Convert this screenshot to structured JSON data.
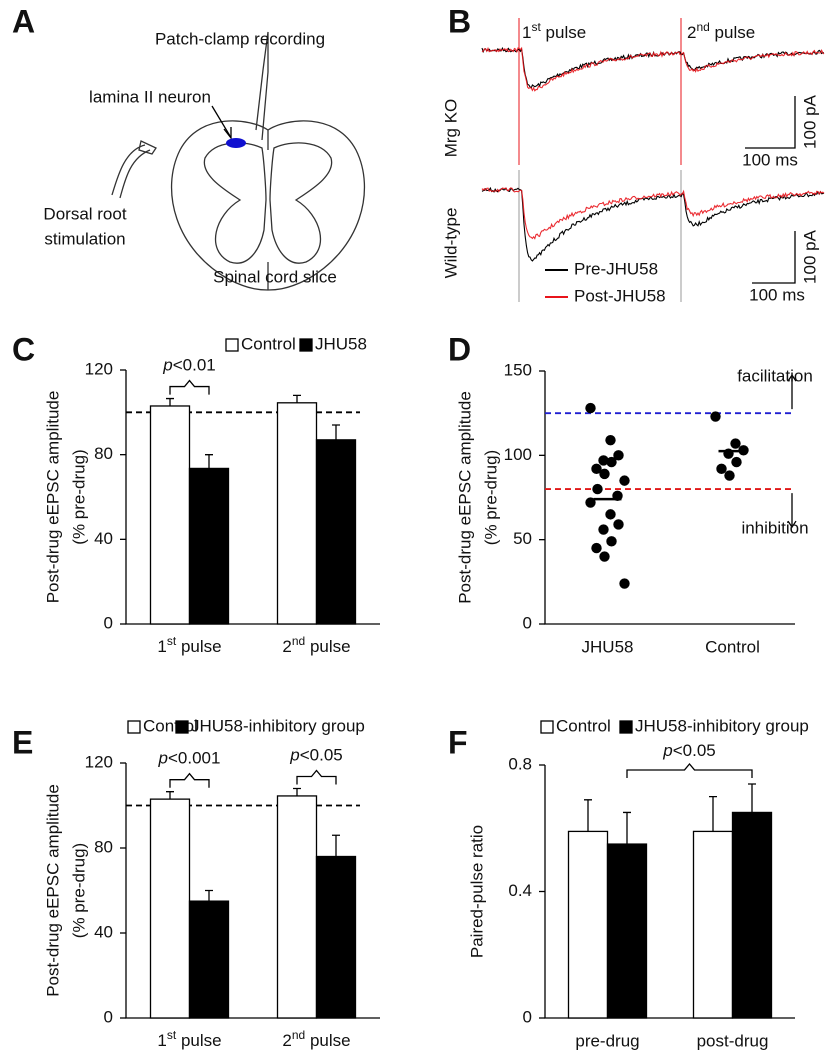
{
  "panel_a": {
    "panel": "A",
    "recording": "Patch-clamp recording",
    "neuron": "lamina II neuron",
    "stimulation": [
      "Dorsal root",
      "stimulation"
    ],
    "caption": "Spinal cord slice",
    "neuron_color": "#1010d0"
  },
  "panel_b": {
    "panel": "B",
    "pulses": [
      "1st pulse",
      "2nd pulse"
    ],
    "rows": [
      "Mrg KO",
      "Wild-type"
    ],
    "scale_bars": [
      {
        "current": "100 pA",
        "time": "100 ms"
      },
      {
        "current": "100 pA",
        "time": "100 ms"
      }
    ],
    "legend": [
      {
        "name": "Pre-JHU58",
        "color": "#000000"
      },
      {
        "name": "Post-JHU58",
        "color": "#e8141b"
      }
    ]
  },
  "chart_data": [
    {
      "type": "bar",
      "panel": "C",
      "ylabel": [
        "Post-drug eEPSC amplitude",
        "(% pre-drug)"
      ],
      "categories": [
        "1st pulse",
        "2nd pulse"
      ],
      "series": [
        {
          "name": "Control",
          "color": "#ffffff",
          "values": [
            103,
            104.5
          ],
          "errors": [
            3.5,
            3.5
          ]
        },
        {
          "name": "JHU58",
          "color": "#000000",
          "values": [
            73.5,
            87
          ],
          "errors": [
            6.5,
            7
          ]
        }
      ],
      "ylim": [
        0,
        120
      ],
      "yticks": [
        0,
        40,
        80,
        120
      ],
      "reference_line": 100,
      "pvalues": [
        "p<0.01",
        null
      ]
    },
    {
      "type": "scatter",
      "panel": "D",
      "ylabel": [
        "Post-drug eEPSC amplitude",
        "(% pre-drug)"
      ],
      "categories": [
        "JHU58",
        "Control"
      ],
      "values": [
        [
          128,
          109,
          100,
          97,
          96,
          92,
          89,
          85,
          80,
          76,
          72,
          65,
          59,
          56,
          49,
          45,
          40,
          24
        ],
        [
          123,
          107,
          103,
          101,
          96,
          92,
          88
        ]
      ],
      "means": [
        74,
        102.5
      ],
      "ylim": [
        0,
        150
      ],
      "yticks": [
        0,
        50,
        100,
        150
      ],
      "reference_lines": [
        {
          "value": 125,
          "color": "#1f1fd0",
          "label": "facilitation"
        },
        {
          "value": 80,
          "color": "#e01818",
          "label": "inhibition"
        }
      ]
    },
    {
      "type": "bar",
      "panel": "E",
      "ylabel": [
        "Post-drug eEPSC amplitude",
        "(% pre-drug)"
      ],
      "categories": [
        "1st pulse",
        "2nd pulse"
      ],
      "series": [
        {
          "name": "Control",
          "color": "#ffffff",
          "values": [
            103,
            104.5
          ],
          "errors": [
            3.5,
            3.5
          ]
        },
        {
          "name": "JHU58-inhibitory group",
          "color": "#000000",
          "values": [
            55,
            76
          ],
          "errors": [
            5,
            10
          ]
        }
      ],
      "ylim": [
        0,
        120
      ],
      "yticks": [
        0,
        40,
        80,
        120
      ],
      "reference_line": 100,
      "pvalues": [
        "p<0.001",
        "p<0.05"
      ]
    },
    {
      "type": "bar",
      "panel": "F",
      "ylabel": [
        "Paired-pulse ratio"
      ],
      "categories": [
        "pre-drug",
        "post-drug"
      ],
      "series": [
        {
          "name": "Control",
          "color": "#ffffff",
          "values": [
            0.59,
            0.59
          ],
          "errors": [
            0.1,
            0.11
          ]
        },
        {
          "name": "JHU58-inhibitory group",
          "color": "#000000",
          "values": [
            0.55,
            0.65
          ],
          "errors": [
            0.1,
            0.09
          ]
        }
      ],
      "ylim": [
        0,
        0.8
      ],
      "yticks": [
        0,
        0.4,
        0.8
      ],
      "comparison": "p<0.05"
    }
  ]
}
